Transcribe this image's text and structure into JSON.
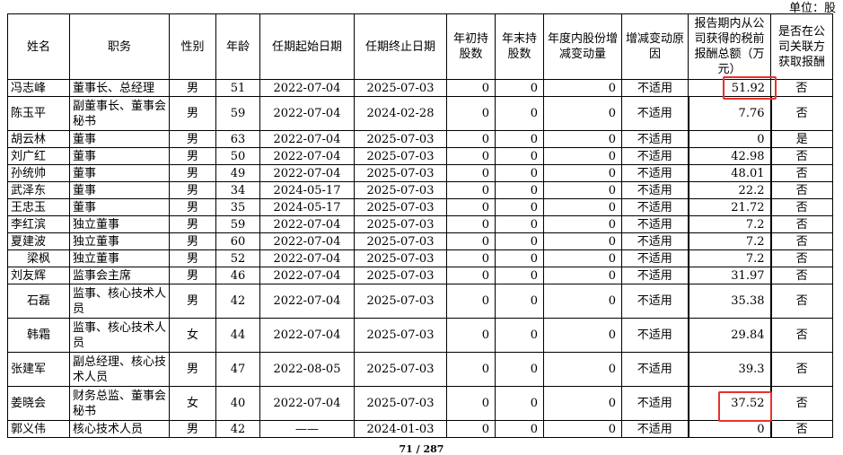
{
  "unit": "单位：股",
  "headers": [
    "姓名",
    "职务",
    "性别",
    "年龄",
    "任期起始日期",
    "任期终止日期",
    "年初持股数",
    "年末持股数",
    "年度内股份增减变动量",
    "增减变动原因",
    "报告期内从公司获得的税前报酬总额（万元）",
    "是否在公司关联方获取报酬"
  ],
  "rows": [
    [
      "冯志峰",
      "董事长、总经理",
      "男",
      "51",
      "2022-07-04",
      "2025-07-03",
      "0",
      "0",
      "0",
      "不适用",
      "51.92",
      "否"
    ],
    [
      "陈玉平",
      "副董事长、董事会秘书",
      "男",
      "59",
      "2022-07-04",
      "2024-02-28",
      "0",
      "0",
      "0",
      "不适用",
      "7.76",
      "否"
    ],
    [
      "胡云林",
      "董事",
      "男",
      "63",
      "2022-07-04",
      "2025-07-03",
      "0",
      "0",
      "0",
      "不适用",
      "0",
      "是"
    ],
    [
      "刘广红",
      "董事",
      "男",
      "50",
      "2022-07-04",
      "2025-07-03",
      "0",
      "0",
      "0",
      "不适用",
      "42.98",
      "否"
    ],
    [
      "孙统帅",
      "董事",
      "男",
      "49",
      "2022-07-04",
      "2025-07-03",
      "0",
      "0",
      "0",
      "不适用",
      "48.01",
      "否"
    ],
    [
      "武泽东",
      "董事",
      "男",
      "34",
      "2024-05-17",
      "2025-07-03",
      "0",
      "0",
      "0",
      "不适用",
      "22.2",
      "否"
    ],
    [
      "王忠玉",
      "董事",
      "男",
      "35",
      "2024-05-17",
      "2025-07-03",
      "0",
      "0",
      "0",
      "不适用",
      "21.72",
      "否"
    ],
    [
      "李红滨",
      "独立董事",
      "男",
      "59",
      "2022-07-04",
      "2025-07-03",
      "0",
      "0",
      "0",
      "不适用",
      "7.2",
      "否"
    ],
    [
      "夏建波",
      "独立董事",
      "男",
      "60",
      "2022-07-04",
      "2025-07-03",
      "0",
      "0",
      "0",
      "不适用",
      "7.2",
      "否"
    ],
    [
      "梁枫",
      "独立董事",
      "男",
      "52",
      "2022-07-04",
      "2025-07-03",
      "0",
      "0",
      "0",
      "不适用",
      "7.2",
      "否"
    ],
    [
      "刘友辉",
      "监事会主席",
      "男",
      "46",
      "2022-07-04",
      "2025-07-03",
      "0",
      "0",
      "0",
      "不适用",
      "31.97",
      "否"
    ],
    [
      "石磊",
      "监事、核心技术人员",
      "男",
      "42",
      "2022-07-04",
      "2025-07-03",
      "0",
      "0",
      "0",
      "不适用",
      "35.38",
      "否"
    ],
    [
      "韩霜",
      "监事、核心技术人员",
      "女",
      "44",
      "2022-07-04",
      "2025-07-03",
      "0",
      "0",
      "0",
      "不适用",
      "29.84",
      "否"
    ],
    [
      "张建军",
      "副总经理、核心技术人员",
      "男",
      "47",
      "2022-08-05",
      "2025-07-03",
      "0",
      "0",
      "0",
      "不适用",
      "39.3",
      "否"
    ],
    [
      "姜晓会",
      "财务总监、董事会秘书",
      "女",
      "40",
      "2022-07-04",
      "2025-07-03",
      "0",
      "0",
      "0",
      "不适用",
      "37.52",
      "否"
    ],
    [
      "郭义伟",
      "核心技术人员",
      "男",
      "42",
      "——",
      "2024-01-03",
      "0",
      "0",
      "0",
      "不适用",
      "0",
      "否"
    ]
  ],
  "tall_rows": [
    1,
    11,
    12,
    13,
    14
  ],
  "highlight_color": "#e8322c",
  "page": "71 / 287"
}
